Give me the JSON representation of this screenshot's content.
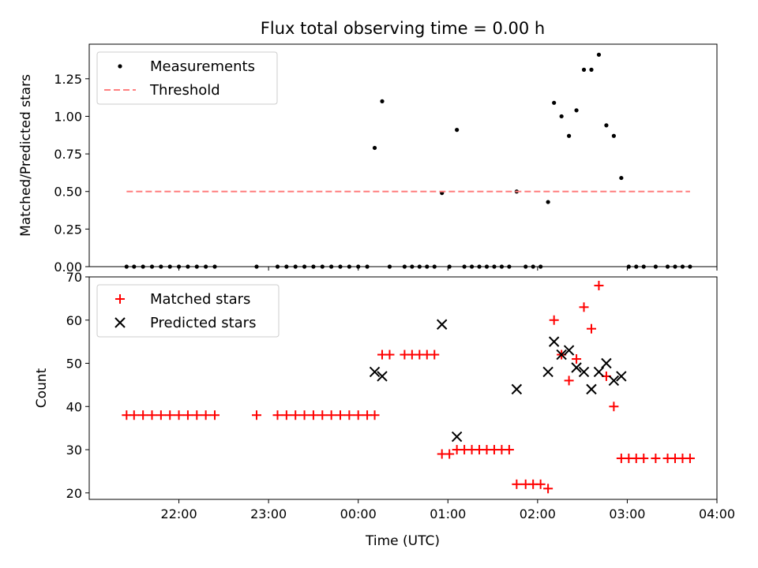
{
  "chart_data": [
    {
      "type": "scatter",
      "title": "Flux total observing time = 0.00 h",
      "xlabel": "",
      "ylabel": "Matched/Predicted stars",
      "ylim": [
        0,
        1.48
      ],
      "yticks": [
        0.0,
        0.25,
        0.5,
        0.75,
        1.0,
        1.25
      ],
      "ytick_labels": [
        "0.00",
        "0.25",
        "0.50",
        "0.75",
        "1.00",
        "1.25"
      ],
      "xlim_hours": [
        21.0,
        28.0
      ],
      "legend_position": "top-left",
      "grid": false,
      "series": [
        {
          "name": "Measurements",
          "marker": "dot",
          "color": "#000000",
          "points": [
            [
              "21:25",
              0
            ],
            [
              "21:30",
              0
            ],
            [
              "21:36",
              0
            ],
            [
              "21:42",
              0
            ],
            [
              "21:48",
              0
            ],
            [
              "21:54",
              0
            ],
            [
              "22:00",
              0
            ],
            [
              "22:06",
              0
            ],
            [
              "22:12",
              0
            ],
            [
              "22:18",
              0
            ],
            [
              "22:24",
              0
            ],
            [
              "22:52",
              0
            ],
            [
              "23:06",
              0
            ],
            [
              "23:12",
              0
            ],
            [
              "23:18",
              0
            ],
            [
              "23:24",
              0
            ],
            [
              "23:30",
              0
            ],
            [
              "23:36",
              0
            ],
            [
              "23:42",
              0
            ],
            [
              "23:48",
              0
            ],
            [
              "23:54",
              0
            ],
            [
              "00:00",
              0
            ],
            [
              "00:06",
              0
            ],
            [
              "00:11",
              0.79
            ],
            [
              "00:16",
              1.1
            ],
            [
              "00:21",
              0
            ],
            [
              "00:31",
              0
            ],
            [
              "00:36",
              0
            ],
            [
              "00:41",
              0
            ],
            [
              "00:46",
              0
            ],
            [
              "00:51",
              0
            ],
            [
              "00:56",
              0.49
            ],
            [
              "01:01",
              0
            ],
            [
              "01:06",
              0.91
            ],
            [
              "01:11",
              0
            ],
            [
              "01:16",
              0
            ],
            [
              "01:21",
              0
            ],
            [
              "01:26",
              0
            ],
            [
              "01:31",
              0
            ],
            [
              "01:36",
              0
            ],
            [
              "01:41",
              0
            ],
            [
              "01:46",
              0.5
            ],
            [
              "01:52",
              0
            ],
            [
              "01:57",
              0
            ],
            [
              "02:02",
              0
            ],
            [
              "02:07",
              0.43
            ],
            [
              "02:11",
              1.09
            ],
            [
              "02:16",
              1.0
            ],
            [
              "02:21",
              0.87
            ],
            [
              "02:26",
              1.04
            ],
            [
              "02:31",
              1.31
            ],
            [
              "02:36",
              1.31
            ],
            [
              "02:41",
              1.41
            ],
            [
              "02:46",
              0.94
            ],
            [
              "02:51",
              0.87
            ],
            [
              "02:56",
              0.59
            ],
            [
              "03:01",
              0
            ],
            [
              "03:06",
              0
            ],
            [
              "03:11",
              0
            ],
            [
              "03:19",
              0
            ],
            [
              "03:27",
              0
            ],
            [
              "03:32",
              0
            ],
            [
              "03:37",
              0
            ],
            [
              "03:42",
              0
            ]
          ]
        },
        {
          "name": "Threshold",
          "marker": "dashed-line",
          "color": "#ff7f7f",
          "points": [
            [
              "21:25",
              0.5
            ],
            [
              "03:42",
              0.5
            ]
          ]
        }
      ]
    },
    {
      "type": "scatter",
      "title": "",
      "xlabel": "Time (UTC)",
      "ylabel": "Count",
      "ylim": [
        18.5,
        70
      ],
      "yticks": [
        20,
        30,
        40,
        50,
        60,
        70
      ],
      "ytick_labels": [
        "20",
        "30",
        "40",
        "50",
        "60",
        "70"
      ],
      "xlim_hours": [
        21.0,
        28.0
      ],
      "xticks_hours": [
        22,
        23,
        24,
        25,
        26,
        27,
        28
      ],
      "xtick_labels": [
        "22:00",
        "23:00",
        "00:00",
        "01:00",
        "02:00",
        "03:00",
        "04:00"
      ],
      "legend_position": "top-left",
      "grid": false,
      "series": [
        {
          "name": "Matched stars",
          "marker": "plus",
          "color": "#ff0000",
          "points": [
            [
              "21:25",
              38
            ],
            [
              "21:30",
              38
            ],
            [
              "21:36",
              38
            ],
            [
              "21:42",
              38
            ],
            [
              "21:48",
              38
            ],
            [
              "21:54",
              38
            ],
            [
              "22:00",
              38
            ],
            [
              "22:06",
              38
            ],
            [
              "22:12",
              38
            ],
            [
              "22:18",
              38
            ],
            [
              "22:24",
              38
            ],
            [
              "22:52",
              38
            ],
            [
              "23:06",
              38
            ],
            [
              "23:12",
              38
            ],
            [
              "23:18",
              38
            ],
            [
              "23:24",
              38
            ],
            [
              "23:30",
              38
            ],
            [
              "23:36",
              38
            ],
            [
              "23:42",
              38
            ],
            [
              "23:48",
              38
            ],
            [
              "23:54",
              38
            ],
            [
              "00:00",
              38
            ],
            [
              "00:06",
              38
            ],
            [
              "00:11",
              38
            ],
            [
              "00:16",
              52
            ],
            [
              "00:21",
              52
            ],
            [
              "00:31",
              52
            ],
            [
              "00:36",
              52
            ],
            [
              "00:41",
              52
            ],
            [
              "00:46",
              52
            ],
            [
              "00:51",
              52
            ],
            [
              "00:56",
              29
            ],
            [
              "01:01",
              29
            ],
            [
              "01:06",
              30
            ],
            [
              "01:11",
              30
            ],
            [
              "01:16",
              30
            ],
            [
              "01:21",
              30
            ],
            [
              "01:26",
              30
            ],
            [
              "01:31",
              30
            ],
            [
              "01:36",
              30
            ],
            [
              "01:41",
              30
            ],
            [
              "01:46",
              22
            ],
            [
              "01:52",
              22
            ],
            [
              "01:57",
              22
            ],
            [
              "02:02",
              22
            ],
            [
              "02:07",
              21
            ],
            [
              "02:11",
              60
            ],
            [
              "02:16",
              52
            ],
            [
              "02:21",
              46
            ],
            [
              "02:26",
              51
            ],
            [
              "02:31",
              63
            ],
            [
              "02:36",
              58
            ],
            [
              "02:41",
              68
            ],
            [
              "02:46",
              47
            ],
            [
              "02:51",
              40
            ],
            [
              "02:56",
              28
            ],
            [
              "03:01",
              28
            ],
            [
              "03:06",
              28
            ],
            [
              "03:11",
              28
            ],
            [
              "03:19",
              28
            ],
            [
              "03:27",
              28
            ],
            [
              "03:32",
              28
            ],
            [
              "03:37",
              28
            ],
            [
              "03:42",
              28
            ]
          ]
        },
        {
          "name": "Predicted stars",
          "marker": "x",
          "color": "#000000",
          "points": [
            [
              "00:11",
              48
            ],
            [
              "00:16",
              47
            ],
            [
              "00:56",
              59
            ],
            [
              "01:06",
              33
            ],
            [
              "01:46",
              44
            ],
            [
              "02:07",
              48
            ],
            [
              "02:11",
              55
            ],
            [
              "02:16",
              52
            ],
            [
              "02:21",
              53
            ],
            [
              "02:26",
              49
            ],
            [
              "02:31",
              48
            ],
            [
              "02:36",
              44
            ],
            [
              "02:41",
              48
            ],
            [
              "02:46",
              50
            ],
            [
              "02:51",
              46
            ],
            [
              "02:56",
              47
            ]
          ]
        }
      ]
    }
  ]
}
